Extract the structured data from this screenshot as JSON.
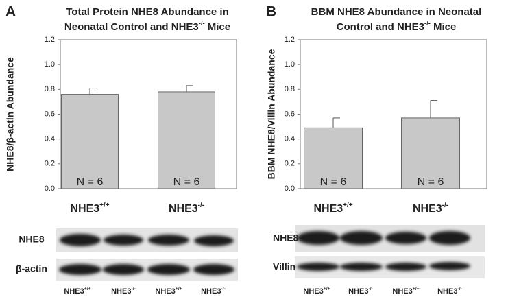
{
  "chart_data": [
    {
      "type": "bar",
      "panel": "A",
      "title_lines": [
        [
          "Total Protein NHE8 Abundance in"
        ],
        [
          "Neonatal Control and NHE3",
          {
            "sup": "-/-"
          },
          " Mice"
        ]
      ],
      "y_label": "NHE8/β-actin Abundance",
      "categories": [
        [
          "NHE3",
          {
            "sup": "+/+"
          }
        ],
        [
          "NHE3",
          {
            "sup": "-/-"
          }
        ]
      ],
      "values": [
        0.76,
        0.78
      ],
      "errors": [
        0.05,
        0.05
      ],
      "annotations": [
        "N = 6",
        "N = 6"
      ],
      "color": "#c8c8c8",
      "ylim": [
        0,
        1.2
      ],
      "yticks": [
        {
          "value": 0,
          "label": "0.0"
        },
        0.2,
        0.4,
        0.6,
        0.8,
        {
          "value": 1,
          "label": "1.0"
        },
        1.2
      ],
      "blot": {
        "rows": [
          "NHE8",
          "β-actin"
        ],
        "lanes": [
          [
            "NHE3",
            {
              "sup": "+/+"
            }
          ],
          [
            "NHE3",
            {
              "sup": "-/-"
            }
          ],
          [
            "NHE3",
            {
              "sup": "+/+"
            }
          ],
          [
            "NHE3",
            {
              "sup": "-/-"
            }
          ]
        ]
      }
    },
    {
      "type": "bar",
      "panel": "B",
      "title_lines": [
        [
          "BBM NHE8 Abundance in Neonatal"
        ],
        [
          "Control and NHE3",
          {
            "sup": "-/-"
          },
          " Mice"
        ]
      ],
      "y_label": "BBM NHE8/Villin Abundance",
      "categories": [
        [
          "NHE3",
          {
            "sup": "+/+"
          }
        ],
        [
          "NHE3",
          {
            "sup": "-/-"
          }
        ]
      ],
      "values": [
        0.49,
        0.57
      ],
      "errors": [
        0.08,
        0.14
      ],
      "annotations": [
        "N = 6",
        "N = 6"
      ],
      "color": "#c8c8c8",
      "ylim": [
        0,
        1.2
      ],
      "yticks": [
        {
          "value": 0,
          "label": "0.0"
        },
        0.2,
        0.4,
        0.6,
        0.8,
        {
          "value": 1,
          "label": "1.0"
        },
        1.2
      ],
      "blot": {
        "rows": [
          "NHE8",
          "Villin"
        ],
        "lanes": [
          [
            "NHE3",
            {
              "sup": "+/+"
            }
          ],
          [
            "NHE3",
            {
              "sup": "-/-"
            }
          ],
          [
            "NHE3",
            {
              "sup": "+/+"
            }
          ],
          [
            "NHE3",
            {
              "sup": "-/-"
            }
          ]
        ]
      }
    }
  ]
}
